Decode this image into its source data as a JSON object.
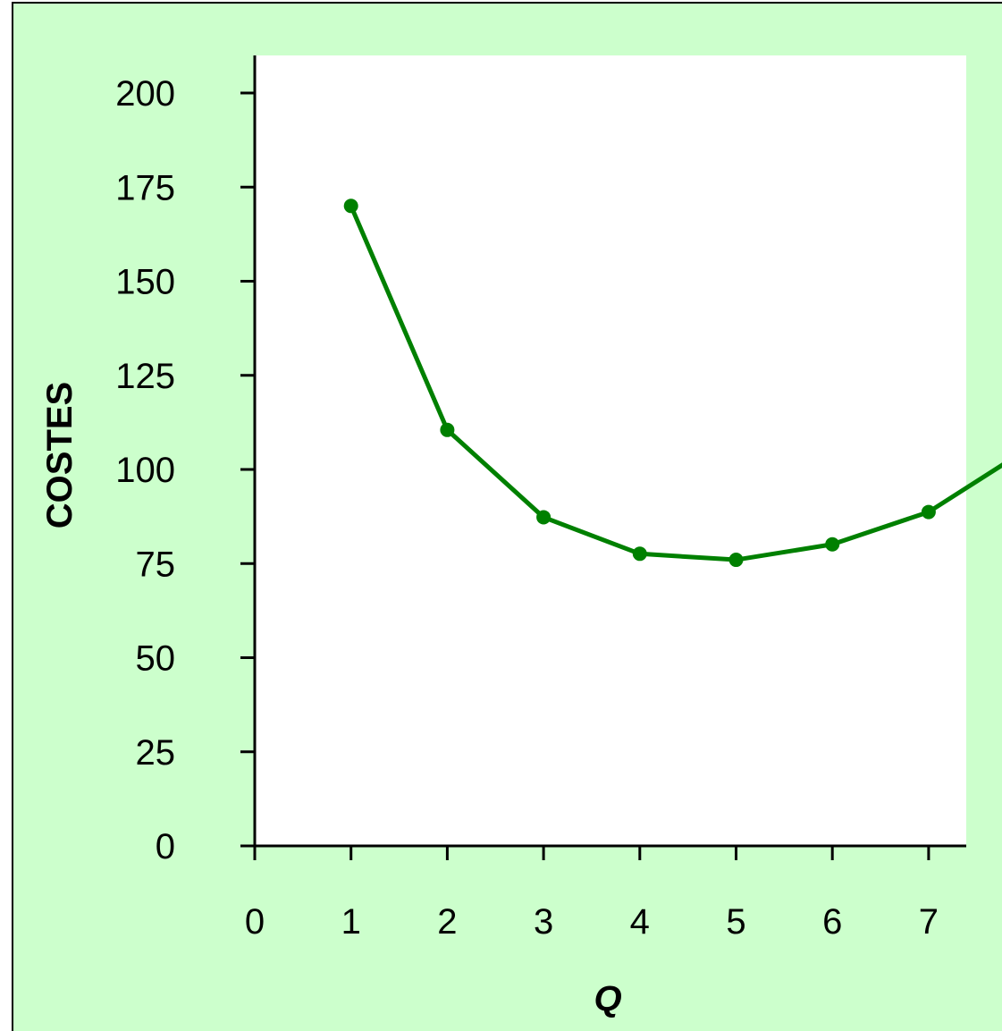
{
  "chart_data": {
    "type": "line",
    "title": "",
    "xlabel": "Q",
    "ylabel": "COSTES",
    "x_ticks": [
      "0",
      "1",
      "2",
      "3",
      "4",
      "5",
      "6",
      "7"
    ],
    "y_ticks": [
      "0",
      "25",
      "50",
      "75",
      "100",
      "125",
      "150",
      "175",
      "200"
    ],
    "xlim": [
      0,
      7.4
    ],
    "ylim": [
      0,
      210
    ],
    "grid": false,
    "series": [
      {
        "color": "#008000",
        "x": [
          1,
          2,
          3,
          4,
          5,
          6,
          7,
          8
        ],
        "y": [
          170,
          110.5,
          87.3,
          77.6,
          76,
          80.1,
          88.7,
          105
        ]
      }
    ]
  },
  "colors": {
    "background": "#ccffcc",
    "plot_area": "#ffffff",
    "axis": "#000000",
    "border": "#000000"
  }
}
